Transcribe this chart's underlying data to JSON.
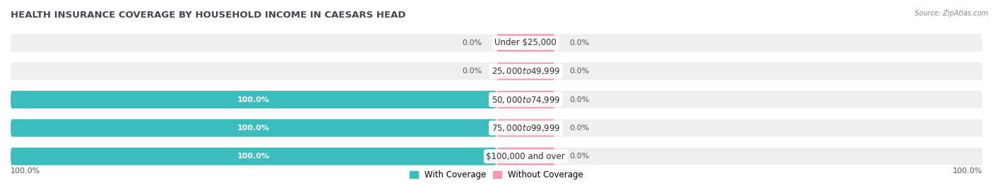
{
  "title": "HEALTH INSURANCE COVERAGE BY HOUSEHOLD INCOME IN CAESARS HEAD",
  "source": "Source: ZipAtlas.com",
  "categories": [
    "Under $25,000",
    "$25,000 to $49,999",
    "$50,000 to $74,999",
    "$75,000 to $99,999",
    "$100,000 and over"
  ],
  "with_coverage": [
    0.0,
    0.0,
    100.0,
    100.0,
    100.0
  ],
  "without_coverage": [
    0.0,
    0.0,
    0.0,
    0.0,
    0.0
  ],
  "color_with": "#3bbdbd",
  "color_without": "#f799b0",
  "bar_bg_color": "#efefef",
  "bar_height": 0.62,
  "figsize": [
    14.06,
    2.7
  ],
  "dpi": 100,
  "title_fontsize": 9.5,
  "label_fontsize": 8,
  "cat_fontsize": 8.5,
  "tick_fontsize": 8,
  "legend_fontsize": 8.5,
  "xlim": [
    -100,
    100
  ],
  "total_width": 200,
  "bg_color": "#ffffff",
  "bar_gap": 0.18,
  "title_color": "#444455",
  "label_color": "#555555"
}
